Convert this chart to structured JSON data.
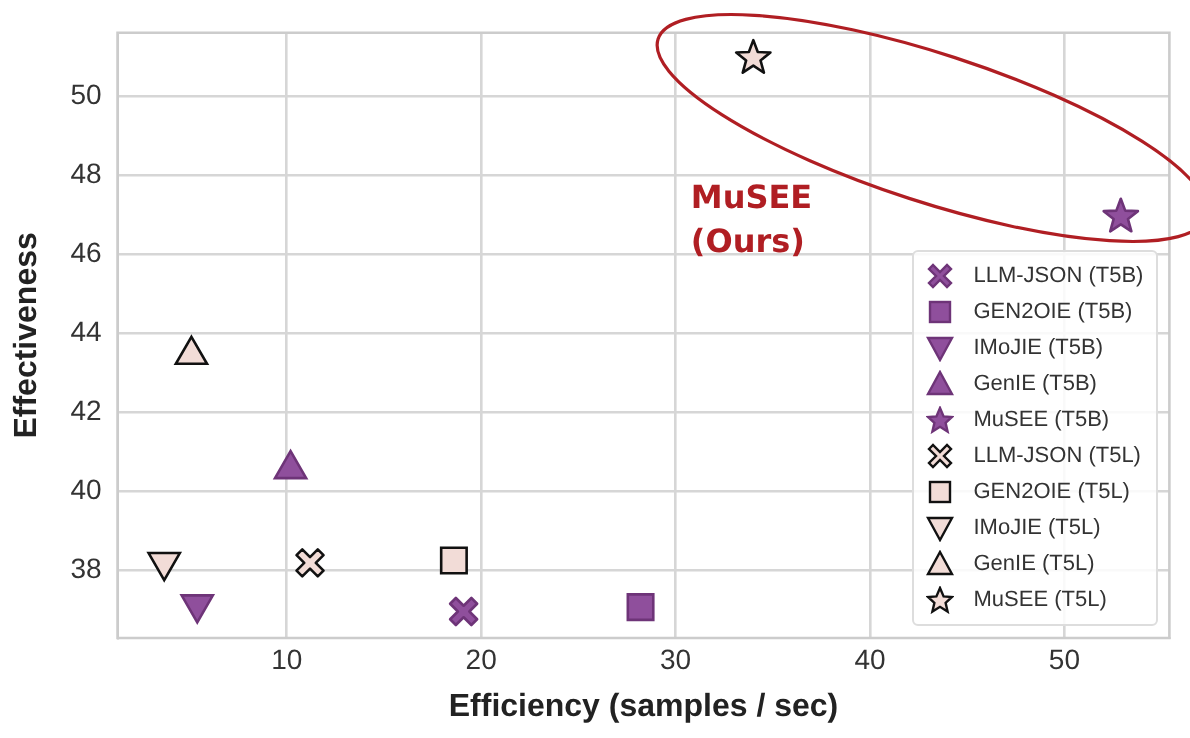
{
  "chart_data": {
    "type": "scatter",
    "xlabel": "Efficiency (samples / sec)",
    "ylabel": "Effectiveness",
    "xlim": [
      1.3,
      55.4
    ],
    "xticks": [
      10,
      20,
      30,
      40,
      50
    ],
    "ylim": [
      36.3,
      51.6
    ],
    "yticks": [
      38,
      40,
      42,
      44,
      46,
      48,
      50
    ],
    "grid": true,
    "legend": "bottom right",
    "annotations": [
      "MuSEE (Ours)"
    ],
    "series": [
      {
        "name": "LLM-JSON (T5B)",
        "color": "#8f4f9c",
        "marker": "cross",
        "x": [
          19.1
        ],
        "values": [
          36.97
        ]
      },
      {
        "name": "GEN2OIE (T5B)",
        "color": "#8f4f9c",
        "marker": "square",
        "x": [
          28.2
        ],
        "values": [
          37.08
        ]
      },
      {
        "name": "IMoJIE (T5B)",
        "color": "#8f4f9c",
        "marker": "triangle_down",
        "x": [
          5.4
        ],
        "values": [
          37.15
        ]
      },
      {
        "name": "GenIE (T5B)",
        "color": "#8f4f9c",
        "marker": "triangle",
        "x": [
          10.2
        ],
        "values": [
          40.57
        ]
      },
      {
        "name": "MuSEE (T5B)",
        "color": "#8f4f9c",
        "marker": "star",
        "x": [
          52.9
        ],
        "values": [
          46.95
        ]
      },
      {
        "name": "LLM-JSON (T5L)",
        "color": "#f2dcd7",
        "marker": "cross",
        "x": [
          11.2
        ],
        "values": [
          38.2
        ]
      },
      {
        "name": "GEN2OIE (T5L)",
        "color": "#f2dcd7",
        "marker": "square",
        "x": [
          18.6
        ],
        "values": [
          38.26
        ]
      },
      {
        "name": "IMoJIE (T5L)",
        "color": "#f2dcd7",
        "marker": "triangle_down",
        "x": [
          3.7
        ],
        "values": [
          38.22
        ]
      },
      {
        "name": "GenIE (T5L)",
        "color": "#f2dcd7",
        "marker": "triangle",
        "x": [
          5.1
        ],
        "values": [
          43.46
        ]
      },
      {
        "name": "MuSEE (T5L)",
        "color": "#f2dcd7",
        "marker": "star",
        "x": [
          34.0
        ],
        "values": [
          50.96
        ]
      }
    ]
  }
}
